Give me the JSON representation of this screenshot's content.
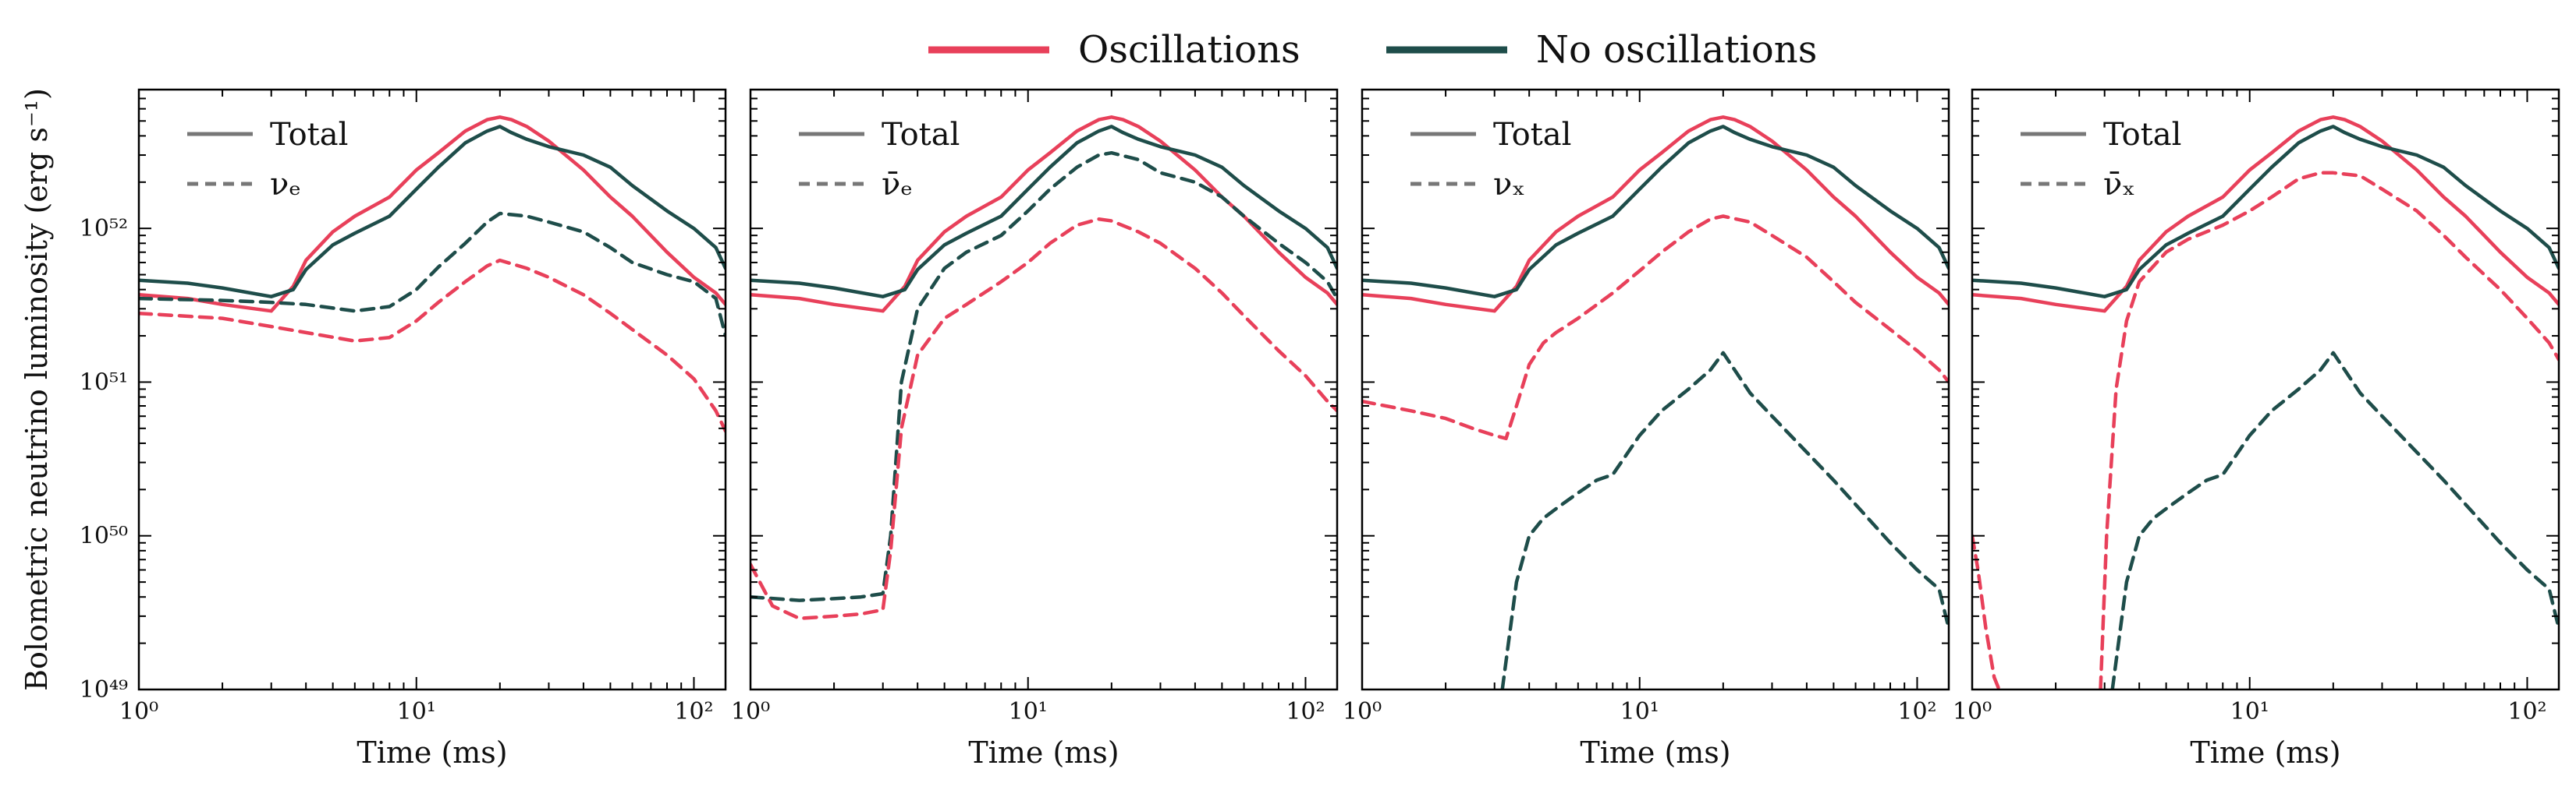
{
  "figure_legend": {
    "items": [
      {
        "label": "Oscillations",
        "color": "#e8405a"
      },
      {
        "label": "No oscillations",
        "color": "#1e4d4a"
      }
    ]
  },
  "shared": {
    "xlabel": "Time (ms)",
    "ylabel": "Bolometric neutrino luminosity (erg s⁻¹)",
    "x_ticks": [
      "10⁰",
      "10¹",
      "10²"
    ],
    "y_ticks": [
      "10⁴⁹",
      "10⁵⁰",
      "10⁵¹",
      "10⁵²"
    ],
    "legend_total": "Total"
  },
  "chart_data": [
    {
      "type": "line",
      "xscale": "log",
      "yscale": "log",
      "xlim": [
        1,
        130
      ],
      "ylim": [
        1e+49,
        8e+52
      ],
      "xlabel": "Time (ms)",
      "ylabel": "Bolometric neutrino luminosity (erg s⁻¹)",
      "legend": [
        "Total",
        "νₑ"
      ],
      "legend_position": "top-left",
      "grid": false,
      "series": [
        {
          "legend": "Oscillations",
          "style": "solid",
          "color": "#e8405a",
          "x": [
            1,
            1.5,
            2,
            3,
            3.6,
            4,
            5,
            6,
            8,
            10,
            12,
            15,
            18,
            20,
            22,
            25,
            30,
            40,
            50,
            60,
            80,
            100,
            120,
            130
          ],
          "y": [
            3.7e+51,
            3.5e+51,
            3.2e+51,
            2.9e+51,
            4.2e+51,
            6.2e+51,
            9.5e+51,
            1.2e+52,
            1.6e+52,
            2.4e+52,
            3.1e+52,
            4.3e+52,
            5.1e+52,
            5.3e+52,
            5.1e+52,
            4.6e+52,
            3.7e+52,
            2.4e+52,
            1.6e+52,
            1.2e+52,
            7e+51,
            4.8e+51,
            3.8e+51,
            3.2e+51
          ]
        },
        {
          "legend": "No oscillations",
          "style": "solid",
          "color": "#1e4d4a",
          "x": [
            1,
            1.5,
            2,
            3,
            3.6,
            4,
            5,
            6,
            8,
            10,
            12,
            15,
            18,
            20,
            22,
            25,
            30,
            40,
            50,
            60,
            80,
            100,
            120,
            130
          ],
          "y": [
            4.6e+51,
            4.4e+51,
            4.1e+51,
            3.6e+51,
            4e+51,
            5.4e+51,
            7.8e+51,
            9.3e+51,
            1.2e+52,
            1.8e+52,
            2.5e+52,
            3.6e+52,
            4.3e+52,
            4.6e+52,
            4.2e+52,
            3.8e+52,
            3.4e+52,
            3e+52,
            2.5e+52,
            1.9e+52,
            1.3e+52,
            1e+52,
            7.5e+51,
            5.5e+51
          ]
        },
        {
          "legend": "No oscillations",
          "style": "dashed",
          "color": "#1e4d4a",
          "x": [
            1,
            2,
            3,
            4,
            6,
            8,
            10,
            12,
            15,
            18,
            20,
            25,
            30,
            40,
            50,
            60,
            80,
            100,
            120,
            130
          ],
          "y": [
            3.5e+51,
            3.4e+51,
            3.3e+51,
            3.2e+51,
            2.9e+51,
            3.1e+51,
            4e+51,
            5.6e+51,
            8e+51,
            1.1e+52,
            1.25e+52,
            1.2e+52,
            1.1e+52,
            9.5e+51,
            7.5e+51,
            6e+51,
            5e+51,
            4.5e+51,
            3.5e+51,
            2e+51
          ]
        },
        {
          "legend": "Oscillations",
          "style": "dashed",
          "color": "#e8405a",
          "x": [
            1,
            2,
            3,
            4,
            6,
            8,
            10,
            12,
            15,
            18,
            20,
            25,
            30,
            40,
            50,
            60,
            80,
            100,
            120,
            130
          ],
          "y": [
            2.8e+51,
            2.6e+51,
            2.3e+51,
            2.1e+51,
            1.85e+51,
            1.95e+51,
            2.5e+51,
            3.3e+51,
            4.5e+51,
            5.7e+51,
            6.2e+51,
            5.5e+51,
            4.8e+51,
            3.7e+51,
            2.8e+51,
            2.2e+51,
            1.5e+51,
            1.05e+51,
            6.5e+50,
            4.8e+50
          ]
        }
      ]
    },
    {
      "type": "line",
      "xscale": "log",
      "yscale": "log",
      "xlim": [
        1,
        130
      ],
      "ylim": [
        1e+49,
        8e+52
      ],
      "xlabel": "Time (ms)",
      "legend": [
        "Total",
        "ν̄ₑ"
      ],
      "legend_position": "top-left",
      "grid": false,
      "series": [
        {
          "legend": "Oscillations",
          "style": "solid",
          "color": "#e8405a",
          "x": [
            1,
            1.5,
            2,
            3,
            3.6,
            4,
            5,
            6,
            8,
            10,
            12,
            15,
            18,
            20,
            22,
            25,
            30,
            40,
            50,
            60,
            80,
            100,
            120,
            130
          ],
          "y": [
            3.7e+51,
            3.5e+51,
            3.2e+51,
            2.9e+51,
            4.2e+51,
            6.2e+51,
            9.5e+51,
            1.2e+52,
            1.6e+52,
            2.4e+52,
            3.1e+52,
            4.3e+52,
            5.1e+52,
            5.3e+52,
            5.1e+52,
            4.6e+52,
            3.7e+52,
            2.4e+52,
            1.6e+52,
            1.2e+52,
            7e+51,
            4.8e+51,
            3.8e+51,
            3.2e+51
          ]
        },
        {
          "legend": "No oscillations",
          "style": "solid",
          "color": "#1e4d4a",
          "x": [
            1,
            1.5,
            2,
            3,
            3.6,
            4,
            5,
            6,
            8,
            10,
            12,
            15,
            18,
            20,
            22,
            25,
            30,
            40,
            50,
            60,
            80,
            100,
            120,
            130
          ],
          "y": [
            4.6e+51,
            4.4e+51,
            4.1e+51,
            3.6e+51,
            4e+51,
            5.4e+51,
            7.8e+51,
            9.3e+51,
            1.2e+52,
            1.8e+52,
            2.5e+52,
            3.6e+52,
            4.3e+52,
            4.6e+52,
            4.2e+52,
            3.8e+52,
            3.4e+52,
            3e+52,
            2.5e+52,
            1.9e+52,
            1.3e+52,
            1e+52,
            7.5e+51,
            5.5e+51
          ]
        },
        {
          "legend": "No oscillations",
          "style": "dashed",
          "color": "#1e4d4a",
          "x": [
            1,
            1.5,
            2,
            2.5,
            3,
            3.2,
            3.5,
            4,
            5,
            6,
            8,
            10,
            12,
            15,
            18,
            20,
            25,
            30,
            40,
            50,
            60,
            80,
            100,
            120,
            130
          ],
          "y": [
            4e+49,
            3.8e+49,
            3.9e+49,
            4e+49,
            4.2e+49,
            1e+50,
            1e+51,
            3e+51,
            5.5e+51,
            7e+51,
            9e+51,
            1.3e+52,
            1.8e+52,
            2.5e+52,
            3e+52,
            3.1e+52,
            2.8e+52,
            2.3e+52,
            2e+52,
            1.6e+52,
            1.2e+52,
            8e+51,
            6e+51,
            4.5e+51,
            3.5e+51
          ]
        },
        {
          "legend": "Oscillations",
          "style": "dashed",
          "color": "#e8405a",
          "x": [
            1,
            1.2,
            1.5,
            2,
            2.5,
            3,
            3.2,
            3.5,
            4,
            5,
            6,
            8,
            10,
            12,
            15,
            18,
            20,
            25,
            30,
            40,
            50,
            60,
            80,
            100,
            120,
            130
          ],
          "y": [
            6.5e+49,
            3.5e+49,
            2.9e+49,
            3e+49,
            3.1e+49,
            3.3e+49,
            8e+49,
            5e+50,
            1.5e+51,
            2.6e+51,
            3.2e+51,
            4.5e+51,
            6e+51,
            8e+51,
            1.05e+52,
            1.15e+52,
            1.12e+52,
            9.5e+51,
            8e+51,
            5.5e+51,
            3.8e+51,
            2.7e+51,
            1.6e+51,
            1.1e+51,
            7.5e+50,
            6.5e+50
          ]
        }
      ]
    },
    {
      "type": "line",
      "xscale": "log",
      "yscale": "log",
      "xlim": [
        1,
        130
      ],
      "ylim": [
        1e+49,
        8e+52
      ],
      "xlabel": "Time (ms)",
      "legend": [
        "Total",
        "νₓ"
      ],
      "legend_position": "top-left",
      "grid": false,
      "series": [
        {
          "legend": "Oscillations",
          "style": "solid",
          "color": "#e8405a",
          "x": [
            1,
            1.5,
            2,
            3,
            3.6,
            4,
            5,
            6,
            8,
            10,
            12,
            15,
            18,
            20,
            22,
            25,
            30,
            40,
            50,
            60,
            80,
            100,
            120,
            130
          ],
          "y": [
            3.7e+51,
            3.5e+51,
            3.2e+51,
            2.9e+51,
            4.2e+51,
            6.2e+51,
            9.5e+51,
            1.2e+52,
            1.6e+52,
            2.4e+52,
            3.1e+52,
            4.3e+52,
            5.1e+52,
            5.3e+52,
            5.1e+52,
            4.6e+52,
            3.7e+52,
            2.4e+52,
            1.6e+52,
            1.2e+52,
            7e+51,
            4.8e+51,
            3.8e+51,
            3.2e+51
          ]
        },
        {
          "legend": "No oscillations",
          "style": "solid",
          "color": "#1e4d4a",
          "x": [
            1,
            1.5,
            2,
            3,
            3.6,
            4,
            5,
            6,
            8,
            10,
            12,
            15,
            18,
            20,
            22,
            25,
            30,
            40,
            50,
            60,
            80,
            100,
            120,
            130
          ],
          "y": [
            4.6e+51,
            4.4e+51,
            4.1e+51,
            3.6e+51,
            4e+51,
            5.4e+51,
            7.8e+51,
            9.3e+51,
            1.2e+52,
            1.8e+52,
            2.5e+52,
            3.6e+52,
            4.3e+52,
            4.6e+52,
            4.2e+52,
            3.8e+52,
            3.4e+52,
            3e+52,
            2.5e+52,
            1.9e+52,
            1.3e+52,
            1e+52,
            7.5e+51,
            5.5e+51
          ]
        },
        {
          "legend": "Oscillations",
          "style": "dashed",
          "color": "#e8405a",
          "x": [
            1,
            1.5,
            2,
            2.5,
            3,
            3.3,
            3.6,
            4,
            4.5,
            5,
            6,
            8,
            10,
            12,
            15,
            18,
            20,
            25,
            30,
            40,
            50,
            60,
            80,
            100,
            120,
            130
          ],
          "y": [
            7.5e+50,
            6.5e+50,
            5.8e+50,
            5e+50,
            4.5e+50,
            4.3e+50,
            7e+50,
            1.3e+51,
            1.8e+51,
            2.1e+51,
            2.6e+51,
            3.8e+51,
            5.3e+51,
            7e+51,
            9.5e+51,
            1.15e+52,
            1.2e+52,
            1.1e+52,
            9e+51,
            6.5e+51,
            4.5e+51,
            3.3e+51,
            2.2e+51,
            1.6e+51,
            1.2e+51,
            1e+51
          ]
        },
        {
          "legend": "No oscillations",
          "style": "dashed",
          "color": "#1e4d4a",
          "x": [
            3.2,
            3.6,
            4,
            4.5,
            5,
            6,
            7,
            8,
            10,
            12,
            15,
            18,
            20,
            22,
            25,
            30,
            40,
            50,
            60,
            80,
            100,
            120,
            130
          ],
          "y": [
            1e+49,
            5e+49,
            1e+50,
            1.3e+50,
            1.5e+50,
            1.9e+50,
            2.3e+50,
            2.5e+50,
            4.5e+50,
            6.5e+50,
            9e+50,
            1.2e+51,
            1.55e+51,
            1.2e+51,
            8.5e+50,
            6e+50,
            3.5e+50,
            2.3e+50,
            1.6e+50,
            9e+49,
            6e+49,
            4.5e+49,
            2.5e+49
          ]
        }
      ]
    },
    {
      "type": "line",
      "xscale": "log",
      "yscale": "log",
      "xlim": [
        1,
        130
      ],
      "ylim": [
        1e+49,
        8e+52
      ],
      "xlabel": "Time (ms)",
      "legend": [
        "Total",
        "ν̄ₓ"
      ],
      "legend_position": "top-left",
      "grid": false,
      "series": [
        {
          "legend": "Oscillations",
          "style": "solid",
          "color": "#e8405a",
          "x": [
            1,
            1.5,
            2,
            3,
            3.6,
            4,
            5,
            6,
            8,
            10,
            12,
            15,
            18,
            20,
            22,
            25,
            30,
            40,
            50,
            60,
            80,
            100,
            120,
            130
          ],
          "y": [
            3.7e+51,
            3.5e+51,
            3.2e+51,
            2.9e+51,
            4.2e+51,
            6.2e+51,
            9.5e+51,
            1.2e+52,
            1.6e+52,
            2.4e+52,
            3.1e+52,
            4.3e+52,
            5.1e+52,
            5.3e+52,
            5.1e+52,
            4.6e+52,
            3.7e+52,
            2.4e+52,
            1.6e+52,
            1.2e+52,
            7e+51,
            4.8e+51,
            3.8e+51,
            3.2e+51
          ]
        },
        {
          "legend": "No oscillations",
          "style": "solid",
          "color": "#1e4d4a",
          "x": [
            1,
            1.5,
            2,
            3,
            3.6,
            4,
            5,
            6,
            8,
            10,
            12,
            15,
            18,
            20,
            22,
            25,
            30,
            40,
            50,
            60,
            80,
            100,
            120,
            130
          ],
          "y": [
            4.6e+51,
            4.4e+51,
            4.1e+51,
            3.6e+51,
            4e+51,
            5.4e+51,
            7.8e+51,
            9.3e+51,
            1.2e+52,
            1.8e+52,
            2.5e+52,
            3.6e+52,
            4.3e+52,
            4.6e+52,
            4.2e+52,
            3.8e+52,
            3.4e+52,
            3e+52,
            2.5e+52,
            1.9e+52,
            1.3e+52,
            1e+52,
            7.5e+51,
            5.5e+51
          ]
        },
        {
          "legend": "Oscillations",
          "style": "dashed",
          "color": "#e8405a",
          "x": [
            1,
            1.05,
            1.12,
            1.2,
            1.25
          ],
          "y": [
            1e+50,
            6e+49,
            2.5e+49,
            1.2e+49,
            1e+49
          ]
        },
        {
          "legend": "Oscillations",
          "style": "dashed",
          "color": "#e8405a",
          "x": [
            2.9,
            3.05,
            3.3,
            3.6,
            4,
            5,
            6,
            8,
            10,
            12,
            15,
            18,
            20,
            25,
            30,
            40,
            50,
            60,
            80,
            100,
            120,
            130
          ],
          "y": [
            1e+49,
            1e+50,
            9e+50,
            2.5e+51,
            4.5e+51,
            7e+51,
            8.5e+51,
            1.05e+52,
            1.3e+52,
            1.6e+52,
            2.1e+52,
            2.3e+52,
            2.3e+52,
            2.2e+52,
            1.8e+52,
            1.3e+52,
            9e+51,
            6.5e+51,
            4e+51,
            2.6e+51,
            1.8e+51,
            1.4e+51
          ]
        },
        {
          "legend": "No oscillations",
          "style": "dashed",
          "color": "#1e4d4a",
          "x": [
            3.2,
            3.6,
            4,
            4.5,
            5,
            6,
            7,
            8,
            10,
            12,
            15,
            18,
            20,
            22,
            25,
            30,
            40,
            50,
            60,
            80,
            100,
            120,
            130
          ],
          "y": [
            1e+49,
            5e+49,
            1e+50,
            1.3e+50,
            1.5e+50,
            1.9e+50,
            2.3e+50,
            2.5e+50,
            4.5e+50,
            6.5e+50,
            9e+50,
            1.2e+51,
            1.55e+51,
            1.2e+51,
            8.5e+50,
            6e+50,
            3.5e+50,
            2.3e+50,
            1.6e+50,
            9e+49,
            6e+49,
            4.5e+49,
            2.5e+49
          ]
        }
      ]
    }
  ]
}
